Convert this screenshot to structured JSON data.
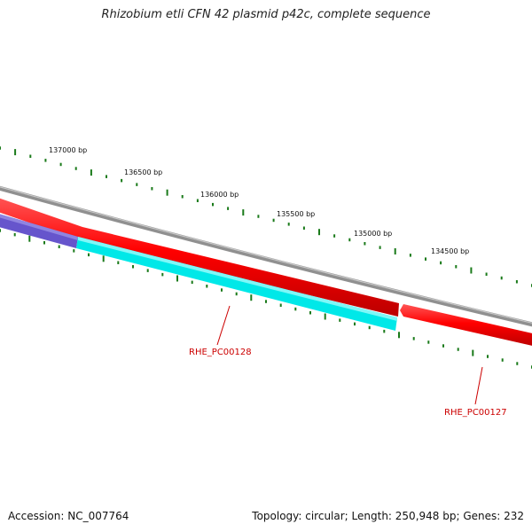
{
  "title": "Rhizobium etli CFN 42 plasmid p42c, complete sequence",
  "footer": {
    "accession": "Accession: NC_007764",
    "summary": "Topology: circular; Length: 250,948 bp; Genes: 232"
  },
  "colors": {
    "backbone": "#808080",
    "forward_gene": "#ff0000",
    "reverse_gene_cyan": "#00e5e5",
    "reverse_gene_purple": "#6655cc",
    "ticks": "#1a7a1a",
    "gene_label": "#cc0000"
  },
  "position_labels": [
    {
      "text": "137000 bp"
    },
    {
      "text": "136500 bp"
    },
    {
      "text": "136000 bp"
    },
    {
      "text": "135500 bp"
    },
    {
      "text": "135000 bp"
    },
    {
      "text": "134500 bp"
    }
  ],
  "genes": [
    {
      "label": "RHE_PC00128",
      "strand": "reverse"
    },
    {
      "label": "RHE_PC00127",
      "strand": "forward"
    }
  ]
}
